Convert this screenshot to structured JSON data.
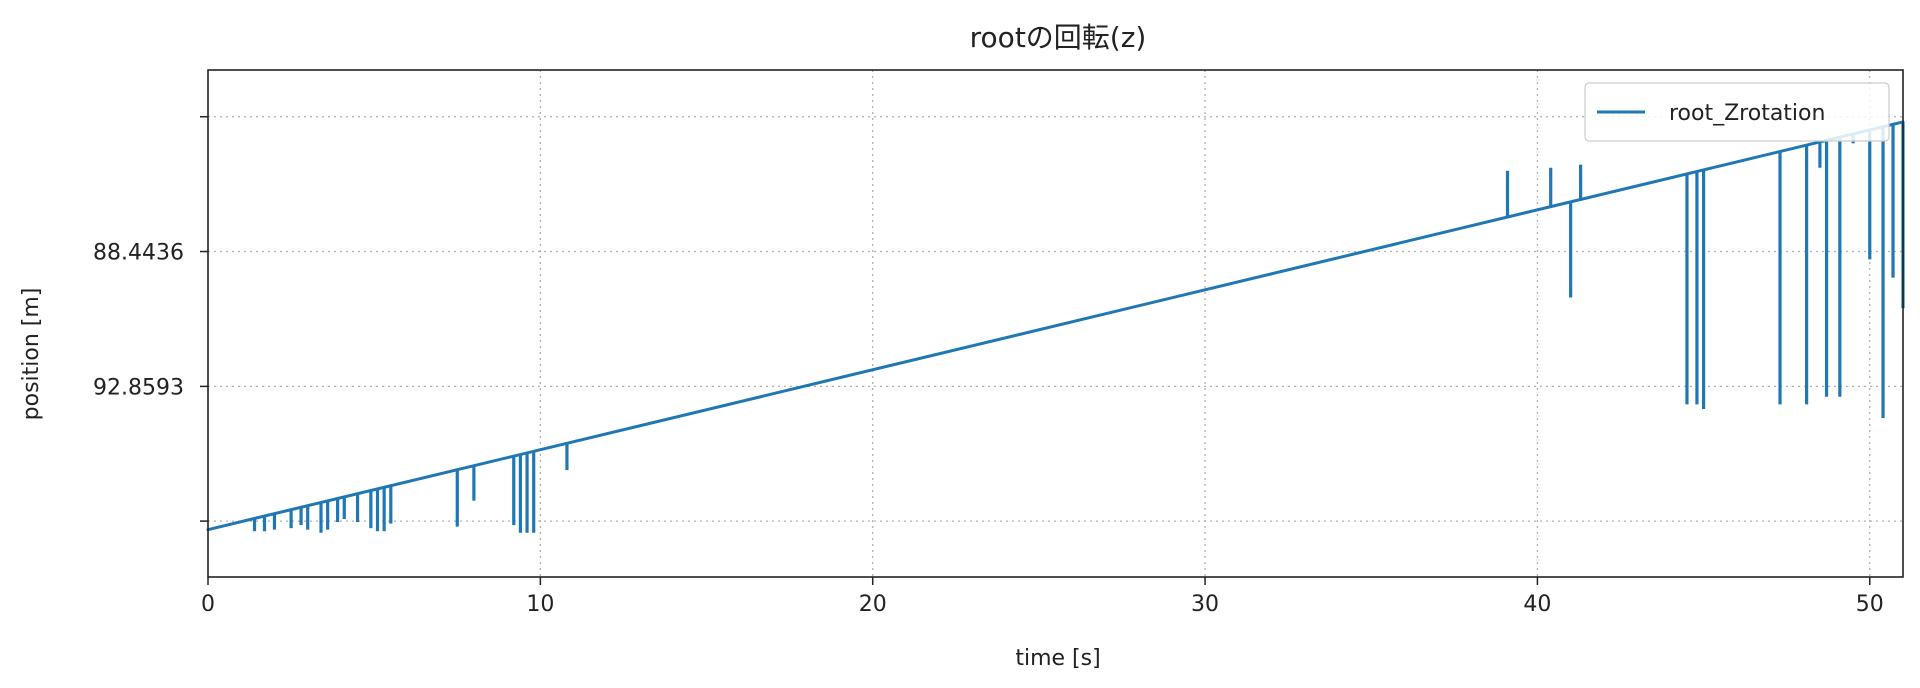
{
  "chart_data": {
    "type": "line",
    "title": "rootの回転(z)",
    "xlabel": "time [s]",
    "ylabel": "position [m]",
    "xlim": [
      0,
      51
    ],
    "xticks": [
      0,
      10,
      20,
      30,
      40,
      50
    ],
    "xtick_labels": [
      "0",
      "10",
      "20",
      "30",
      "40",
      "50"
    ],
    "ylim": [
      99.1,
      82.5
    ],
    "yaxis_inverted": true,
    "yticks": [
      84.03,
      88.4436,
      92.8593,
      97.27
    ],
    "ytick_labels": [
      "",
      "88.4436",
      "92.8593",
      ""
    ],
    "grid": true,
    "grid_style": "dotted",
    "legend_position": "upper right",
    "color": "#1f77b4",
    "series": [
      {
        "name": "root_Zrotation",
        "color": "#1f77b4",
        "trend": {
          "x": [
            0,
            51
          ],
          "y": [
            97.55,
            84.2
          ]
        },
        "spikes": [
          {
            "x": 1.4,
            "y": 97.6
          },
          {
            "x": 1.7,
            "y": 97.6
          },
          {
            "x": 2.0,
            "y": 97.55
          },
          {
            "x": 2.5,
            "y": 97.5
          },
          {
            "x": 2.8,
            "y": 97.4
          },
          {
            "x": 3.0,
            "y": 97.55
          },
          {
            "x": 3.4,
            "y": 97.65
          },
          {
            "x": 3.6,
            "y": 97.55
          },
          {
            "x": 3.9,
            "y": 97.3
          },
          {
            "x": 4.1,
            "y": 97.2
          },
          {
            "x": 4.5,
            "y": 97.3
          },
          {
            "x": 4.9,
            "y": 97.5
          },
          {
            "x": 5.1,
            "y": 97.6
          },
          {
            "x": 5.3,
            "y": 97.6
          },
          {
            "x": 5.5,
            "y": 97.35
          },
          {
            "x": 7.5,
            "y": 97.45
          },
          {
            "x": 8.0,
            "y": 96.6
          },
          {
            "x": 9.2,
            "y": 97.4
          },
          {
            "x": 9.4,
            "y": 97.65
          },
          {
            "x": 9.6,
            "y": 97.65
          },
          {
            "x": 9.8,
            "y": 97.65
          },
          {
            "x": 10.8,
            "y": 95.6
          },
          {
            "x": 39.1,
            "y": 85.8
          },
          {
            "x": 40.4,
            "y": 85.7
          },
          {
            "x": 41.0,
            "y": 89.95
          },
          {
            "x": 41.3,
            "y": 85.6
          },
          {
            "x": 44.5,
            "y": 93.45
          },
          {
            "x": 44.8,
            "y": 93.45
          },
          {
            "x": 45.0,
            "y": 93.6
          },
          {
            "x": 46.0,
            "y": 85.5
          },
          {
            "x": 47.3,
            "y": 93.45
          },
          {
            "x": 48.1,
            "y": 93.45
          },
          {
            "x": 48.5,
            "y": 85.7
          },
          {
            "x": 48.7,
            "y": 93.2
          },
          {
            "x": 49.1,
            "y": 93.2
          },
          {
            "x": 49.5,
            "y": 84.9
          },
          {
            "x": 50.0,
            "y": 88.7
          },
          {
            "x": 50.4,
            "y": 93.9
          },
          {
            "x": 50.7,
            "y": 89.3
          },
          {
            "x": 51.0,
            "y": 90.3
          }
        ]
      }
    ]
  }
}
